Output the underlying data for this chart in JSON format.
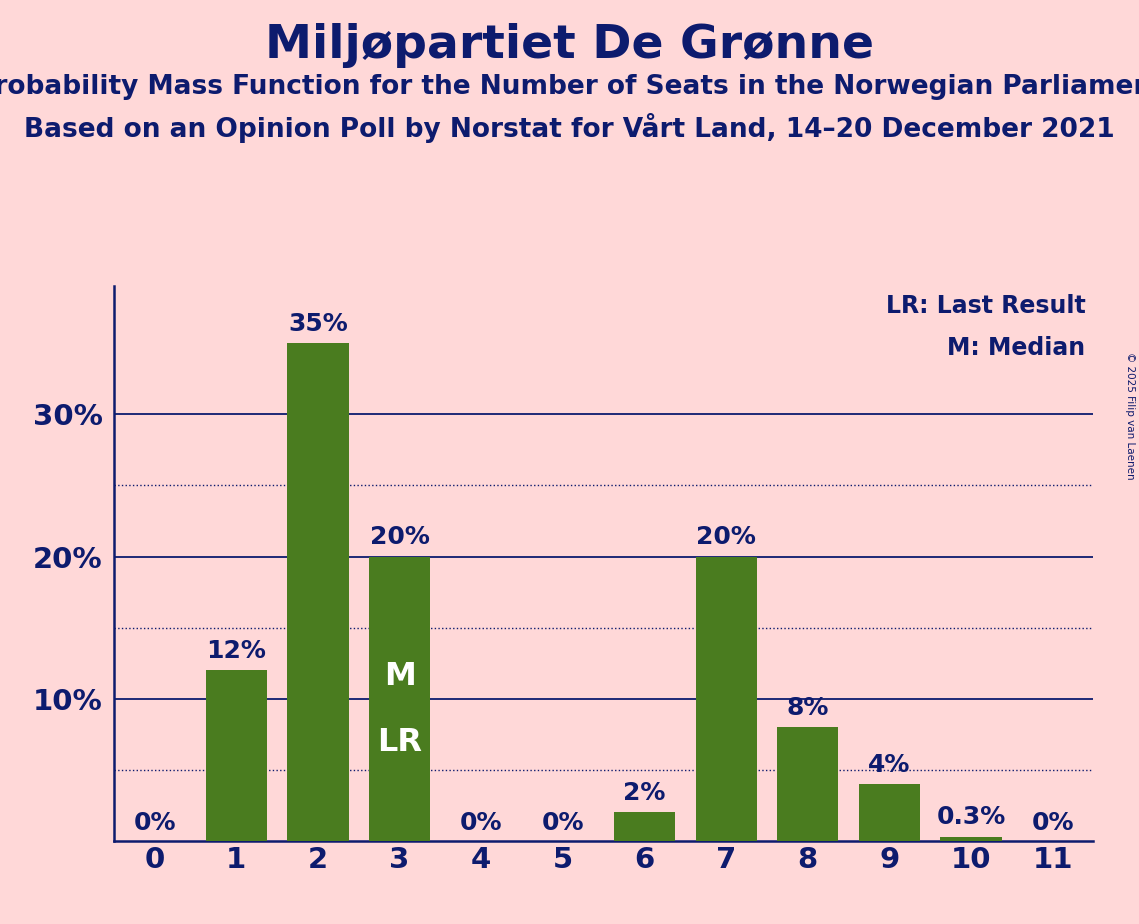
{
  "title": "Miljøpartiet De Grønne",
  "subtitle1": "Probability Mass Function for the Number of Seats in the Norwegian Parliament",
  "subtitle2": "Based on an Opinion Poll by Norstat for Vårt Land, 14–20 December 2021",
  "copyright": "© 2025 Filip van Laenen",
  "categories": [
    0,
    1,
    2,
    3,
    4,
    5,
    6,
    7,
    8,
    9,
    10,
    11
  ],
  "values": [
    0.0,
    0.12,
    0.35,
    0.2,
    0.0,
    0.0,
    0.02,
    0.2,
    0.08,
    0.04,
    0.003,
    0.0
  ],
  "labels": [
    "0%",
    "12%",
    "35%",
    "20%",
    "0%",
    "0%",
    "2%",
    "20%",
    "8%",
    "4%",
    "0.3%",
    "0%"
  ],
  "bar_color": "#4a7c1f",
  "background_color": "#ffd8d8",
  "text_color": "#0d1b6e",
  "title_fontsize": 34,
  "subtitle_fontsize": 19,
  "label_fontsize": 18,
  "tick_fontsize": 21,
  "ytick_values": [
    0.0,
    0.1,
    0.2,
    0.3
  ],
  "ytick_labels": [
    "",
    "10%",
    "20%",
    "30%"
  ],
  "dotted_lines": [
    0.05,
    0.15,
    0.25
  ],
  "solid_lines": [
    0.1,
    0.2,
    0.3
  ],
  "median_bar": 3,
  "lr_bar": 3,
  "legend_lr": "LR: Last Result",
  "legend_m": "M: Median",
  "legend_fontsize": 17,
  "ylim": [
    0,
    0.39
  ],
  "m_lr_fontsize": 23
}
